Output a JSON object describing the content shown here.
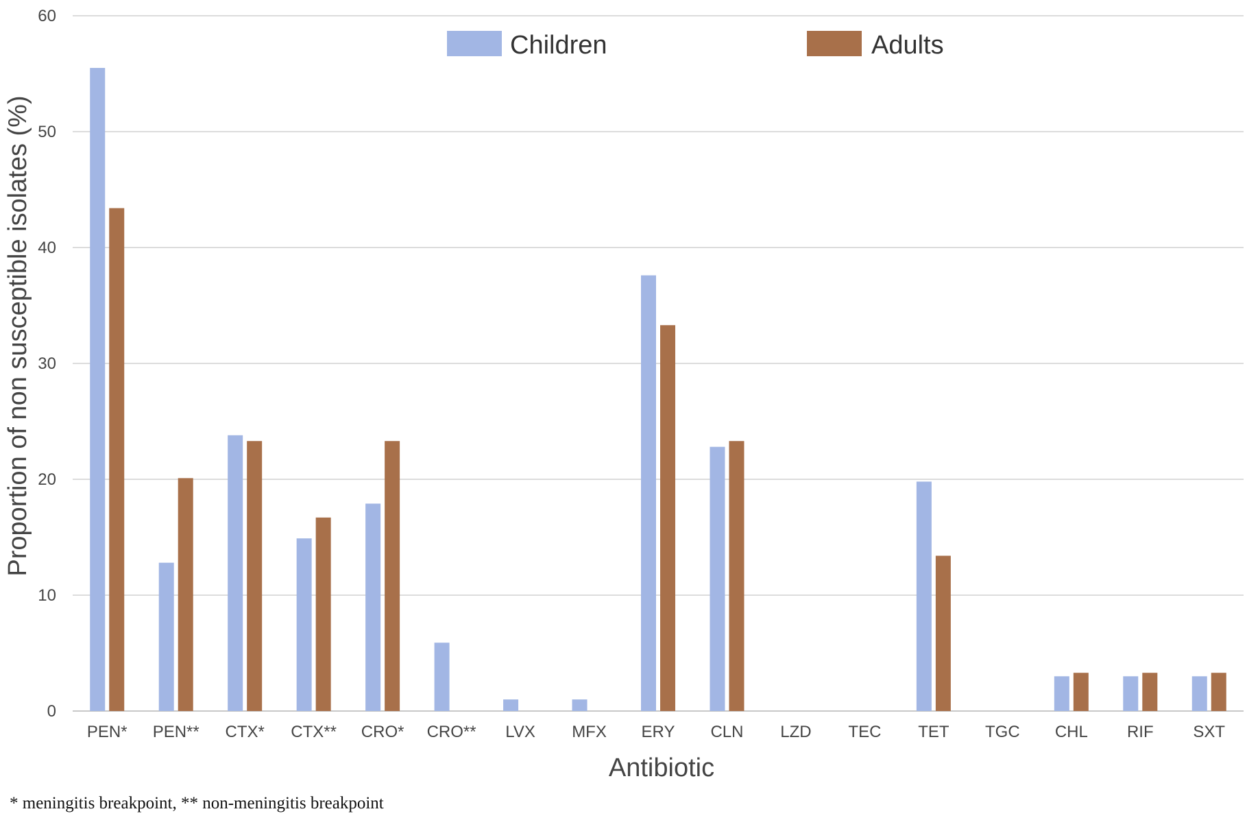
{
  "chart_data": {
    "type": "bar",
    "xlabel": "Antibiotic",
    "ylabel": "Proportion of non susceptible isolates (%)",
    "ylim": [
      0,
      60
    ],
    "yticks": [
      0,
      10,
      20,
      30,
      40,
      50,
      60
    ],
    "grid": true,
    "legend_position": "top",
    "categories": [
      "PEN*",
      "PEN**",
      "CTX*",
      "CTX**",
      "CRO*",
      "CRO**",
      "LVX",
      "MFX",
      "ERY",
      "CLN",
      "LZD",
      "TEC",
      "TET",
      "TGC",
      "CHL",
      "RIF",
      "SXT"
    ],
    "series": [
      {
        "name": "Children",
        "color": "#A2B6E4",
        "values": [
          55.5,
          12.8,
          23.8,
          14.9,
          17.9,
          5.9,
          1.0,
          1.0,
          37.6,
          22.8,
          0,
          0,
          19.8,
          0,
          3.0,
          3.0,
          3.0
        ]
      },
      {
        "name": "Adults",
        "color": "#A8704A",
        "values": [
          43.4,
          20.1,
          23.3,
          16.7,
          23.3,
          0,
          0,
          0,
          33.3,
          23.3,
          0,
          0,
          13.4,
          0,
          3.3,
          3.3,
          3.3
        ]
      }
    ]
  },
  "footnote": "* meningitis breakpoint, ** non-meningitis breakpoint"
}
